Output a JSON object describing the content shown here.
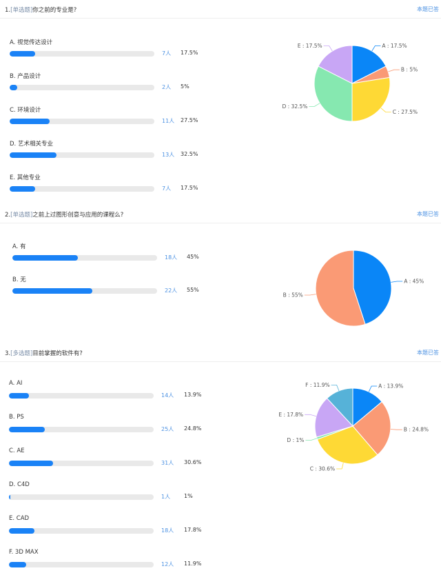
{
  "questions": [
    {
      "number": "1.",
      "type": "[单选题]",
      "text": "你之前的专业是?",
      "answer_link": "本题已答",
      "options": [
        {
          "label": "A. 视觉传达设计",
          "count": "7人",
          "percent": "17.5%"
        },
        {
          "label": "B. 产品设计",
          "count": "2人",
          "percent": "5%"
        },
        {
          "label": "C. 环境设计",
          "count": "11人",
          "percent": "27.5%"
        },
        {
          "label": "D. 艺术相关专业",
          "count": "13人",
          "percent": "32.5%"
        },
        {
          "label": "E. 其他专业",
          "count": "7人",
          "percent": "17.5%"
        }
      ]
    },
    {
      "number": "2.",
      "type": "[单选题]",
      "text": "之前上过图形创意与应用的课程么?",
      "answer_link": "本题已答",
      "options": [
        {
          "label": "A. 有",
          "count": "18人",
          "percent": "45%"
        },
        {
          "label": "B. 无",
          "count": "22人",
          "percent": "55%"
        }
      ]
    },
    {
      "number": "3.",
      "type": "[多选题]",
      "text": "目前掌握的软件有?",
      "answer_link": "本题已答",
      "options": [
        {
          "label": "A. AI",
          "count": "14人",
          "percent": "13.9%"
        },
        {
          "label": "B. PS",
          "count": "25人",
          "percent": "24.8%"
        },
        {
          "label": "C. AE",
          "count": "31人",
          "percent": "30.6%"
        },
        {
          "label": "D. C4D",
          "count": "1人",
          "percent": "1%"
        },
        {
          "label": "E. CAD",
          "count": "18人",
          "percent": "17.8%"
        },
        {
          "label": "F. 3D MAX",
          "count": "12人",
          "percent": "11.9%"
        }
      ]
    }
  ],
  "chart_data": [
    {
      "type": "pie",
      "categories": [
        "A",
        "B",
        "C",
        "D",
        "E"
      ],
      "values": [
        17.5,
        5,
        27.5,
        32.5,
        17.5
      ],
      "labels": [
        "A : 17.5%",
        "B : 5%",
        "C : 27.5%",
        "D : 32.5%",
        "E : 17.5%"
      ],
      "colors": [
        "#0a86f7",
        "#fa9a75",
        "#fed935",
        "#86e8b0",
        "#c8a6f5"
      ]
    },
    {
      "type": "pie",
      "categories": [
        "A",
        "B"
      ],
      "values": [
        45,
        55
      ],
      "labels": [
        "A : 45%",
        "B : 55%"
      ],
      "colors": [
        "#0a86f7",
        "#fa9a75"
      ]
    },
    {
      "type": "pie",
      "categories": [
        "A",
        "B",
        "C",
        "D",
        "E",
        "F"
      ],
      "values": [
        13.9,
        24.8,
        30.6,
        1,
        17.8,
        11.9
      ],
      "labels": [
        "A : 13.9%",
        "B : 24.8%",
        "C : 30.6%",
        "D : 1%",
        "E : 17.8%",
        "F : 11.9%"
      ],
      "colors": [
        "#0a86f7",
        "#fa9a75",
        "#fed935",
        "#86e8b0",
        "#c8a6f5",
        "#56b2d8"
      ]
    }
  ]
}
